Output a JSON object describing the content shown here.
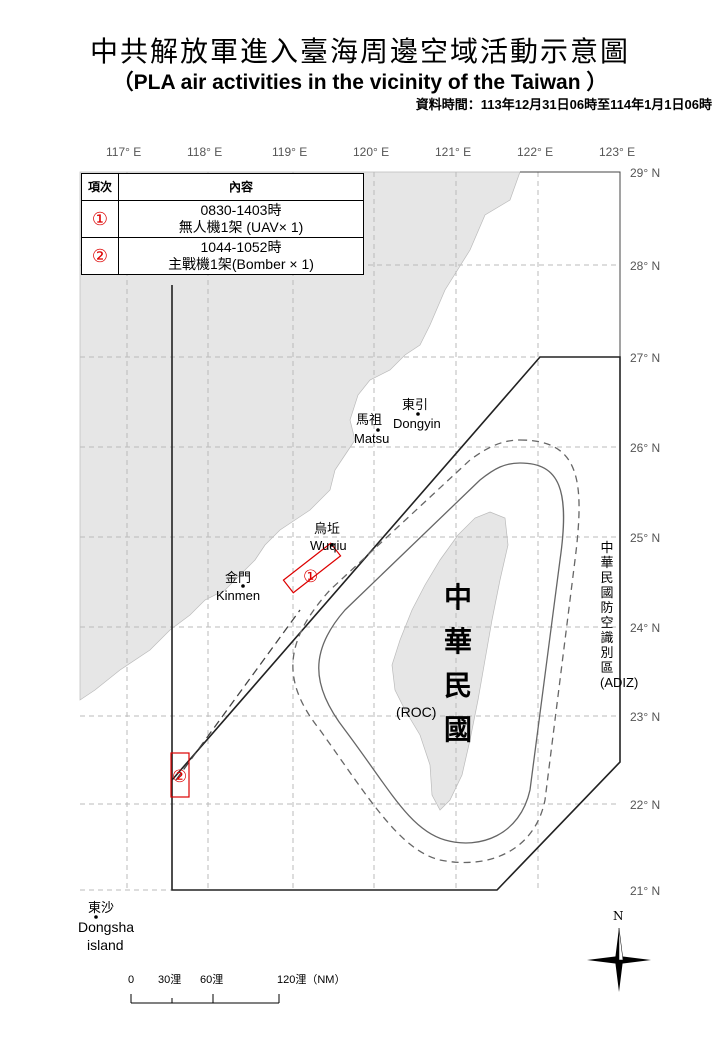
{
  "title": "中共解放軍進入臺海周邊空域活動示意圖",
  "subtitle": "（PLA air activities in the vicinity of the Taiwan ）",
  "data_time": "資料時間：113年12月31日06時至114年1月1日06時",
  "longitudes": [
    "117° E",
    "118° E",
    "119° E",
    "120° E",
    "121° E",
    "122° E",
    "123° E"
  ],
  "latitudes": [
    "29° N",
    "28° N",
    "27° N",
    "26° N",
    "25° N",
    "24° N",
    "23° N",
    "22° N",
    "21° N"
  ],
  "table": {
    "headers": [
      "項次",
      "內容"
    ],
    "rows": [
      {
        "num": "①",
        "time": "0830-1403時",
        "detail": "無人機1架 (UAV× 1)"
      },
      {
        "num": "②",
        "time": "1044-1052時",
        "detail": "主戰機1架(Bomber × 1)"
      }
    ]
  },
  "places": {
    "dongyin_zh": "東引",
    "dongyin_en": "Dongyin",
    "matsu_zh": "馬祖",
    "matsu_en": "Matsu",
    "wuqiu_zh": "烏坵",
    "wuqiu_en": "Wuqiu",
    "kinmen_zh": "金門",
    "kinmen_en": "Kinmen",
    "dongsha_zh": "東沙",
    "dongsha_en1": "Dongsha",
    "dongsha_en2": "island",
    "roc_zh": "中華民國",
    "roc_en": "(ROC)"
  },
  "adiz_label": "中華民國防空識別區(ADIZ)",
  "markers": [
    "①",
    "②"
  ],
  "scale": {
    "labels": [
      "0",
      "30浬",
      "60浬",
      "120浬（NM）"
    ]
  },
  "north": "N",
  "colors": {
    "land": "#e6e6e6",
    "marker": "#d00000",
    "grid": "#bbbbbb"
  }
}
